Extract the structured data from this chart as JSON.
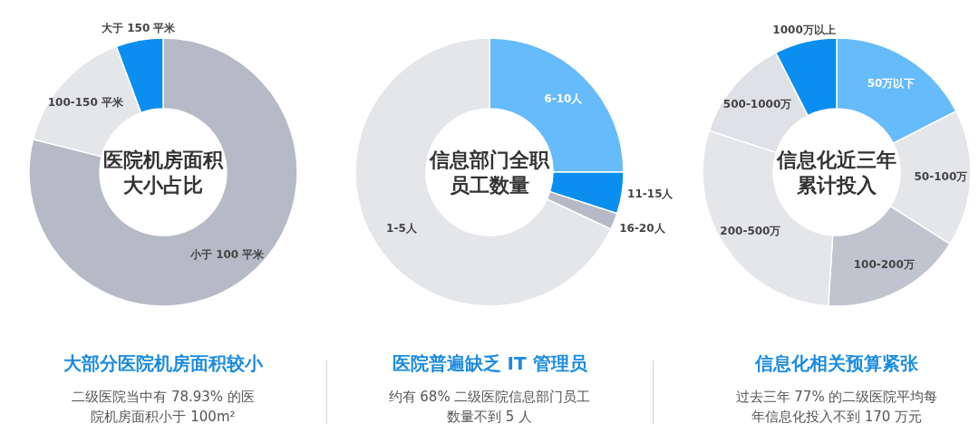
{
  "chart_data": [
    {
      "type": "donut",
      "title": "医院机房面积大小占比",
      "categories": [
        "小于 100 平米",
        "100-150 平米",
        "大于 150 平米"
      ],
      "values": [
        78.93,
        15.4,
        5.67
      ],
      "colors": [
        "#b5bac6",
        "#e4e6ea",
        "#0a8ff0"
      ],
      "annotations": [
        "大部分医院机房面积较小",
        "二级医院当中有 78.93% 的医院机房面积小于 100m²"
      ]
    },
    {
      "type": "donut",
      "title": "信息部门全职员工数量",
      "categories": [
        "6-10人",
        "11-15人",
        "16-20人",
        "1-5人"
      ],
      "values": [
        25,
        5,
        2,
        68
      ],
      "colors": [
        "#66bbfa",
        "#0a8ff0",
        "#b5bac6",
        "#e4e6ea"
      ],
      "annotations": [
        "医院普遍缺乏 IT 管理员",
        "约有 68% 二级医院信息部门员工数量不到 5 人"
      ]
    },
    {
      "type": "donut",
      "title": "信息化近三年累计投入",
      "categories": [
        "50万以下",
        "50-100万",
        "100-200万",
        "200-500万",
        "500-1000万",
        "1000万以上"
      ],
      "values": [
        17.5,
        16.5,
        17,
        29,
        12.5,
        7.5
      ],
      "colors": [
        "#66bbfa",
        "#e4e6ea",
        "#bfc4cf",
        "#e4e6ea",
        "#dfe1e6",
        "#0a8ff0"
      ],
      "annotations": [
        "信息化相关预算紧张",
        "过去三年 77% 的二级医院平均每年信息化投入不到 170 万元"
      ]
    }
  ]
}
